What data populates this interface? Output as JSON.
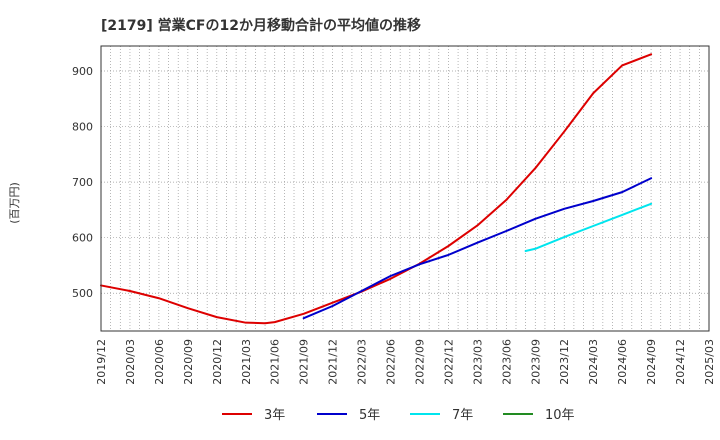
{
  "chart_data": {
    "type": "line",
    "title": "[2179]  営業CFの12か月移動合計の平均値の推移",
    "ylabel": "(百万円)",
    "xlabel": "",
    "x_ticks": [
      "2019/12",
      "2020/03",
      "2020/06",
      "2020/09",
      "2020/12",
      "2021/03",
      "2021/06",
      "2021/09",
      "2021/12",
      "2022/03",
      "2022/06",
      "2022/09",
      "2022/12",
      "2023/03",
      "2023/06",
      "2023/09",
      "2023/12",
      "2024/03",
      "2024/06",
      "2024/09",
      "2024/12",
      "2025/03"
    ],
    "y_ticks": [
      500,
      600,
      700,
      800,
      900
    ],
    "ylim": [
      432,
      945
    ],
    "grid": true,
    "legend_position": "bottom",
    "series": [
      {
        "name": "3年",
        "color": "#dd0000",
        "points": [
          [
            "2019/12",
            514
          ],
          [
            "2020/03",
            504
          ],
          [
            "2020/06",
            491
          ],
          [
            "2020/09",
            473
          ],
          [
            "2020/12",
            457
          ],
          [
            "2021/03",
            447
          ],
          [
            "2021/05",
            446
          ],
          [
            "2021/06",
            448
          ],
          [
            "2021/09",
            463
          ],
          [
            "2021/12",
            483
          ],
          [
            "2022/03",
            503
          ],
          [
            "2022/06",
            526
          ],
          [
            "2022/09",
            553
          ],
          [
            "2022/12",
            585
          ],
          [
            "2023/03",
            622
          ],
          [
            "2023/06",
            668
          ],
          [
            "2023/09",
            725
          ],
          [
            "2023/12",
            791
          ],
          [
            "2024/03",
            860
          ],
          [
            "2024/06",
            910
          ],
          [
            "2024/09",
            930
          ]
        ]
      },
      {
        "name": "5年",
        "color": "#0000cc",
        "points": [
          [
            "2021/09",
            455
          ],
          [
            "2021/12",
            477
          ],
          [
            "2022/03",
            504
          ],
          [
            "2022/06",
            531
          ],
          [
            "2022/09",
            552
          ],
          [
            "2022/12",
            569
          ],
          [
            "2023/03",
            591
          ],
          [
            "2023/06",
            612
          ],
          [
            "2023/09",
            634
          ],
          [
            "2023/12",
            652
          ],
          [
            "2024/03",
            666
          ],
          [
            "2024/06",
            682
          ],
          [
            "2024/09",
            707
          ]
        ]
      },
      {
        "name": "7年",
        "color": "#00e5ee",
        "points": [
          [
            "2023/08",
            576
          ],
          [
            "2023/09",
            580
          ],
          [
            "2023/12",
            601
          ],
          [
            "2024/03",
            621
          ],
          [
            "2024/06",
            641
          ],
          [
            "2024/09",
            661
          ]
        ]
      },
      {
        "name": "10年",
        "color": "#228b22",
        "points": []
      }
    ]
  }
}
